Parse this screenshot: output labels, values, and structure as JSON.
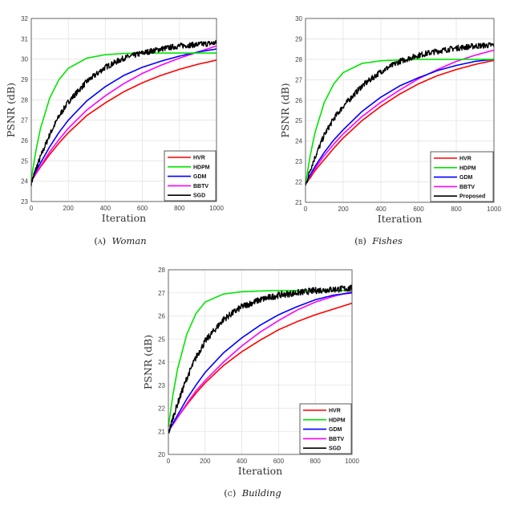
{
  "chart_data": [
    {
      "type": "line",
      "caption_label": "(a)",
      "caption_title": "Woman",
      "xlabel": "Iteration",
      "ylabel": "PSNR (dB)",
      "xlim": [
        0,
        1000
      ],
      "ylim": [
        23,
        32
      ],
      "xticks": [
        0,
        200,
        400,
        600,
        800,
        1000
      ],
      "yticks": [
        23,
        24,
        25,
        26,
        27,
        28,
        29,
        30,
        31,
        32
      ],
      "grid": true,
      "legend_position": "bottom-right",
      "x": [
        0,
        25,
        50,
        100,
        150,
        200,
        300,
        400,
        500,
        600,
        700,
        800,
        900,
        1000
      ],
      "series": [
        {
          "name": "HVR",
          "color": "#ff0000",
          "values": [
            24,
            24.36,
            24.7,
            25.32,
            25.88,
            26.38,
            27.23,
            27.85,
            28.4,
            28.84,
            29.2,
            29.5,
            29.75,
            29.95
          ]
        },
        {
          "name": "HDPM",
          "color": "#00e600",
          "values": [
            24.1,
            25.5,
            26.6,
            28.1,
            29.0,
            29.55,
            30.05,
            30.22,
            30.28,
            30.3,
            30.3,
            30.3,
            30.3,
            30.3
          ]
        },
        {
          "name": "GDM",
          "color": "#0000ff",
          "values": [
            24,
            24.5,
            24.9,
            25.7,
            26.4,
            27.0,
            27.95,
            28.65,
            29.2,
            29.6,
            29.9,
            30.15,
            30.35,
            30.5
          ]
        },
        {
          "name": "BBTV",
          "color": "#ff00ff",
          "values": [
            24,
            24.4,
            24.75,
            25.45,
            26.05,
            26.6,
            27.5,
            28.2,
            28.8,
            29.3,
            29.7,
            30.05,
            30.35,
            30.65
          ]
        },
        {
          "name": "SGD",
          "color": "#000000",
          "noisy": true,
          "values": [
            23.9,
            24.6,
            25.2,
            26.3,
            27.2,
            27.9,
            28.9,
            29.6,
            30.05,
            30.3,
            30.5,
            30.65,
            30.72,
            30.8
          ]
        }
      ]
    },
    {
      "type": "line",
      "caption_label": "(b)",
      "caption_title": "Fishes",
      "xlabel": "Iteration",
      "ylabel": "PSNR (dB)",
      "xlim": [
        0,
        1000
      ],
      "ylim": [
        21,
        30
      ],
      "xticks": [
        0,
        200,
        400,
        600,
        800,
        1000
      ],
      "yticks": [
        21,
        22,
        23,
        24,
        25,
        26,
        27,
        28,
        29,
        30
      ],
      "grid": true,
      "legend_position": "bottom-right",
      "x": [
        0,
        25,
        50,
        100,
        150,
        200,
        300,
        400,
        500,
        600,
        700,
        800,
        900,
        1000
      ],
      "series": [
        {
          "name": "HVR",
          "color": "#ff0000",
          "values": [
            21.9,
            22.2,
            22.55,
            23.1,
            23.65,
            24.15,
            25.0,
            25.7,
            26.3,
            26.8,
            27.2,
            27.5,
            27.75,
            27.95
          ]
        },
        {
          "name": "HDPM",
          "color": "#00e600",
          "values": [
            21.9,
            23.3,
            24.4,
            25.9,
            26.8,
            27.35,
            27.8,
            27.93,
            27.97,
            28.0,
            28.0,
            28.0,
            28.0,
            28.0
          ]
        },
        {
          "name": "GDM",
          "color": "#0000ff",
          "values": [
            21.9,
            22.35,
            22.75,
            23.45,
            24.05,
            24.55,
            25.45,
            26.15,
            26.7,
            27.1,
            27.45,
            27.7,
            27.9,
            28.0
          ]
        },
        {
          "name": "BBTV",
          "color": "#ff00ff",
          "values": [
            21.9,
            22.3,
            22.65,
            23.3,
            23.85,
            24.35,
            25.2,
            25.9,
            26.5,
            27.05,
            27.5,
            27.9,
            28.2,
            28.45
          ]
        },
        {
          "name": "Proposed",
          "color": "#000000",
          "noisy": true,
          "values": [
            21.8,
            22.6,
            23.2,
            24.3,
            25.1,
            25.7,
            26.7,
            27.4,
            27.9,
            28.2,
            28.4,
            28.55,
            28.65,
            28.7
          ]
        }
      ]
    },
    {
      "type": "line",
      "caption_label": "(c)",
      "caption_title": "Building",
      "xlabel": "Iteration",
      "ylabel": "PSNR (dB)",
      "xlim": [
        0,
        1000
      ],
      "ylim": [
        20,
        28
      ],
      "xticks": [
        0,
        200,
        400,
        600,
        800,
        1000
      ],
      "yticks": [
        20,
        21,
        22,
        23,
        24,
        25,
        26,
        27,
        28
      ],
      "grid": true,
      "legend_position": "bottom-right",
      "x": [
        0,
        25,
        50,
        100,
        150,
        200,
        300,
        400,
        500,
        600,
        700,
        800,
        900,
        1000
      ],
      "series": [
        {
          "name": "HVR",
          "color": "#ff0000",
          "values": [
            21,
            21.3,
            21.6,
            22.15,
            22.65,
            23.1,
            23.85,
            24.45,
            24.95,
            25.4,
            25.75,
            26.05,
            26.3,
            26.55
          ]
        },
        {
          "name": "HDPM",
          "color": "#00e600",
          "values": [
            21.2,
            22.6,
            23.7,
            25.2,
            26.1,
            26.6,
            26.95,
            27.05,
            27.08,
            27.1,
            27.1,
            27.1,
            27.1,
            27.1
          ]
        },
        {
          "name": "GDM",
          "color": "#0000ff",
          "values": [
            21,
            21.35,
            21.7,
            22.4,
            23.0,
            23.55,
            24.4,
            25.05,
            25.6,
            26.05,
            26.4,
            26.7,
            26.9,
            27.0
          ]
        },
        {
          "name": "BBTV",
          "color": "#ff00ff",
          "values": [
            21,
            21.3,
            21.6,
            22.2,
            22.75,
            23.2,
            24.0,
            24.7,
            25.3,
            25.8,
            26.25,
            26.6,
            26.85,
            27.05
          ]
        },
        {
          "name": "SGD",
          "color": "#000000",
          "noisy": true,
          "values": [
            20.9,
            21.6,
            22.2,
            23.3,
            24.2,
            24.9,
            25.85,
            26.4,
            26.7,
            26.9,
            27.0,
            27.1,
            27.15,
            27.2
          ]
        }
      ]
    }
  ]
}
